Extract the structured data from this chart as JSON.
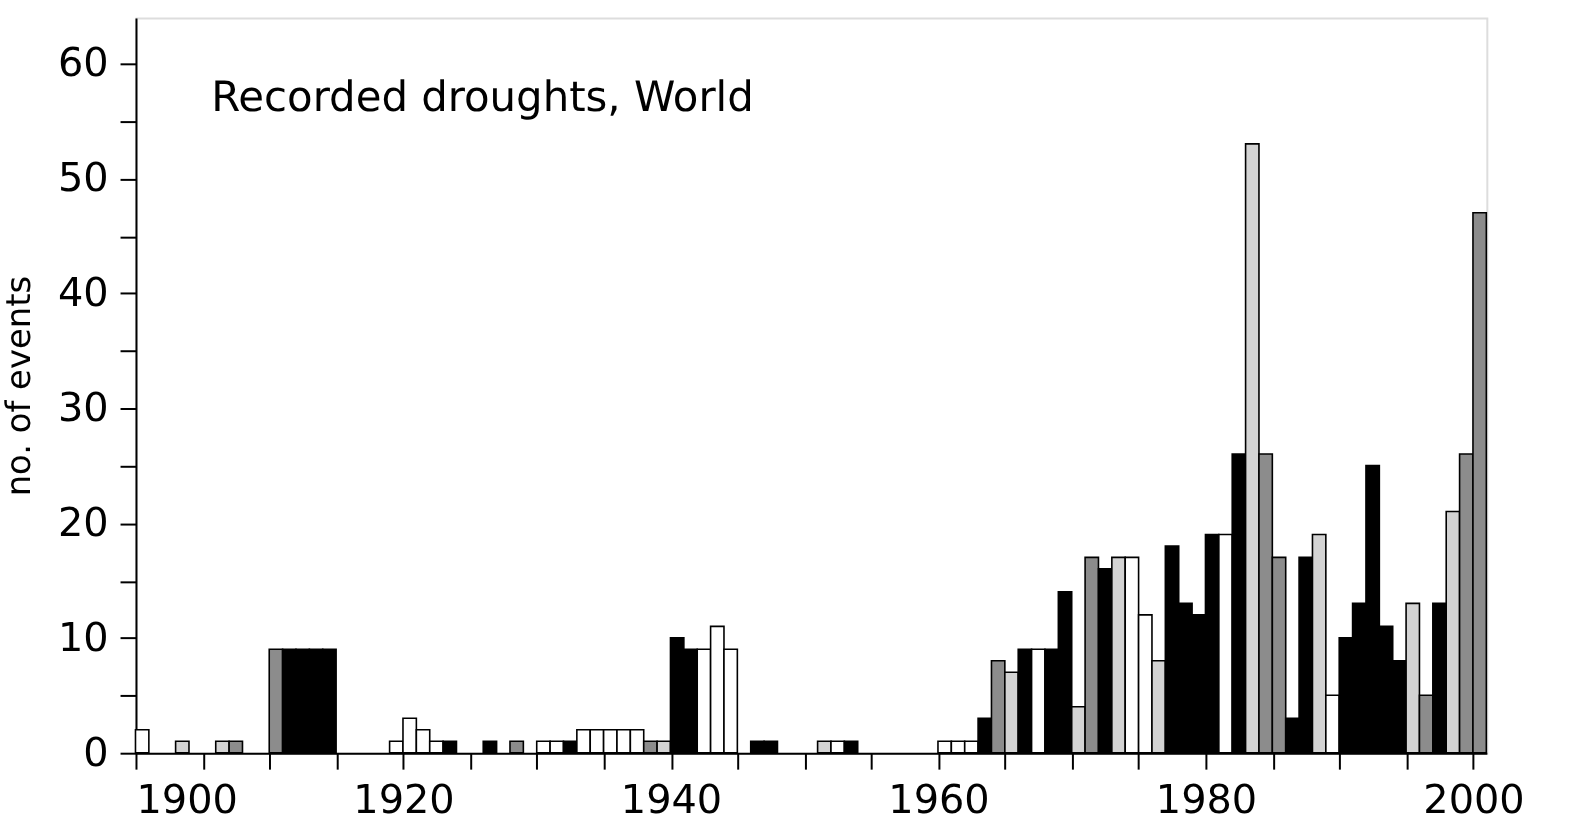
{
  "chart_data": {
    "type": "bar",
    "title": "Recorded droughts, World",
    "ylabel": "no. of events",
    "x": [
      1900,
      1901,
      1902,
      1903,
      1904,
      1905,
      1906,
      1907,
      1908,
      1909,
      1910,
      1911,
      1912,
      1913,
      1914,
      1915,
      1916,
      1917,
      1918,
      1919,
      1920,
      1921,
      1922,
      1923,
      1924,
      1925,
      1926,
      1927,
      1928,
      1929,
      1930,
      1931,
      1932,
      1933,
      1934,
      1935,
      1936,
      1937,
      1938,
      1939,
      1940,
      1941,
      1942,
      1943,
      1944,
      1945,
      1946,
      1947,
      1948,
      1949,
      1950,
      1951,
      1952,
      1953,
      1954,
      1955,
      1956,
      1957,
      1958,
      1959,
      1960,
      1961,
      1962,
      1963,
      1964,
      1965,
      1966,
      1967,
      1968,
      1969,
      1970,
      1971,
      1972,
      1973,
      1974,
      1975,
      1976,
      1977,
      1978,
      1979,
      1980,
      1981,
      1982,
      1983,
      1984,
      1985,
      1986,
      1987,
      1988,
      1989,
      1990,
      1991,
      1992,
      1993,
      1994,
      1995,
      1996,
      1997,
      1998,
      1999,
      2000
    ],
    "values": [
      2,
      0,
      0,
      1,
      0,
      0,
      1,
      1,
      0,
      0,
      9,
      9,
      9,
      9,
      9,
      0,
      0,
      0,
      0,
      1,
      3,
      2,
      1,
      1,
      0,
      0,
      1,
      0,
      1,
      0,
      1,
      1,
      1,
      2,
      2,
      2,
      2,
      2,
      1,
      1,
      10,
      9,
      9,
      11,
      9,
      0,
      1,
      1,
      0,
      0,
      0,
      1,
      1,
      1,
      0,
      0,
      0,
      0,
      0,
      0,
      1,
      1,
      1,
      3,
      8,
      7,
      9,
      9,
      9,
      14,
      4,
      17,
      16,
      17,
      17,
      12,
      8,
      18,
      13,
      12,
      19,
      19,
      26,
      53,
      26,
      17,
      3,
      17,
      19,
      5,
      10,
      13,
      25,
      11,
      8,
      13,
      5,
      13,
      21,
      26,
      47
    ],
    "colors": [
      "#ffffff",
      "#ffffff",
      "#ffffff",
      "#d3d3d3",
      "#ffffff",
      "#ffffff",
      "#d3d3d3",
      "#8c8c8c",
      "#ffffff",
      "#ffffff",
      "#8c8c8c",
      "#000000",
      "#000000",
      "#000000",
      "#000000",
      "#ffffff",
      "#ffffff",
      "#ffffff",
      "#ffffff",
      "#ffffff",
      "#ffffff",
      "#ffffff",
      "#ffffff",
      "#000000",
      "#ffffff",
      "#ffffff",
      "#000000",
      "#ffffff",
      "#8c8c8c",
      "#ffffff",
      "#ffffff",
      "#ffffff",
      "#000000",
      "#ffffff",
      "#ffffff",
      "#ffffff",
      "#ffffff",
      "#ffffff",
      "#8c8c8c",
      "#d3d3d3",
      "#000000",
      "#000000",
      "#ffffff",
      "#ffffff",
      "#ffffff",
      "#ffffff",
      "#000000",
      "#000000",
      "#ffffff",
      "#ffffff",
      "#ffffff",
      "#d3d3d3",
      "#ffffff",
      "#000000",
      "#ffffff",
      "#ffffff",
      "#ffffff",
      "#ffffff",
      "#ffffff",
      "#ffffff",
      "#ffffff",
      "#ffffff",
      "#ffffff",
      "#000000",
      "#8c8c8c",
      "#d3d3d3",
      "#000000",
      "#ffffff",
      "#000000",
      "#000000",
      "#d3d3d3",
      "#8c8c8c",
      "#000000",
      "#d3d3d3",
      "#ffffff",
      "#ffffff",
      "#d3d3d3",
      "#000000",
      "#000000",
      "#000000",
      "#000000",
      "#ffffff",
      "#000000",
      "#d3d3d3",
      "#8c8c8c",
      "#8c8c8c",
      "#000000",
      "#000000",
      "#d3d3d3",
      "#ffffff",
      "#000000",
      "#000000",
      "#000000",
      "#000000",
      "#000000",
      "#d3d3d3",
      "#8c8c8c",
      "#000000",
      "#d3d3d3",
      "#8c8c8c",
      "#8c8c8c"
    ],
    "xlim": [
      1900,
      2001
    ],
    "xticks": [
      1900,
      {
        "value": 1905,
        "label": null
      },
      {
        "value": 1910,
        "label": null
      },
      {
        "value": 1915,
        "label": null
      },
      1920,
      {
        "value": 1925,
        "label": null
      },
      {
        "value": 1930,
        "label": null
      },
      {
        "value": 1935,
        "label": null
      },
      1940,
      {
        "value": 1945,
        "label": null
      },
      {
        "value": 1950,
        "label": null
      },
      {
        "value": 1955,
        "label": null
      },
      1960,
      {
        "value": 1965,
        "label": null
      },
      {
        "value": 1970,
        "label": null
      },
      {
        "value": 1975,
        "label": null
      },
      1980,
      {
        "value": 1985,
        "label": null
      },
      {
        "value": 1990,
        "label": null
      },
      {
        "value": 1995,
        "label": null
      },
      2000
    ],
    "ylim": [
      0,
      64
    ],
    "yticks": [
      0,
      {
        "value": 5,
        "label": null
      },
      10,
      {
        "value": 15,
        "label": null
      },
      20,
      {
        "value": 25,
        "label": null
      },
      30,
      {
        "value": 35,
        "label": null
      },
      40,
      {
        "value": 45,
        "label": null
      },
      50,
      {
        "value": 55,
        "label": null
      },
      60
    ],
    "grid": false
  }
}
